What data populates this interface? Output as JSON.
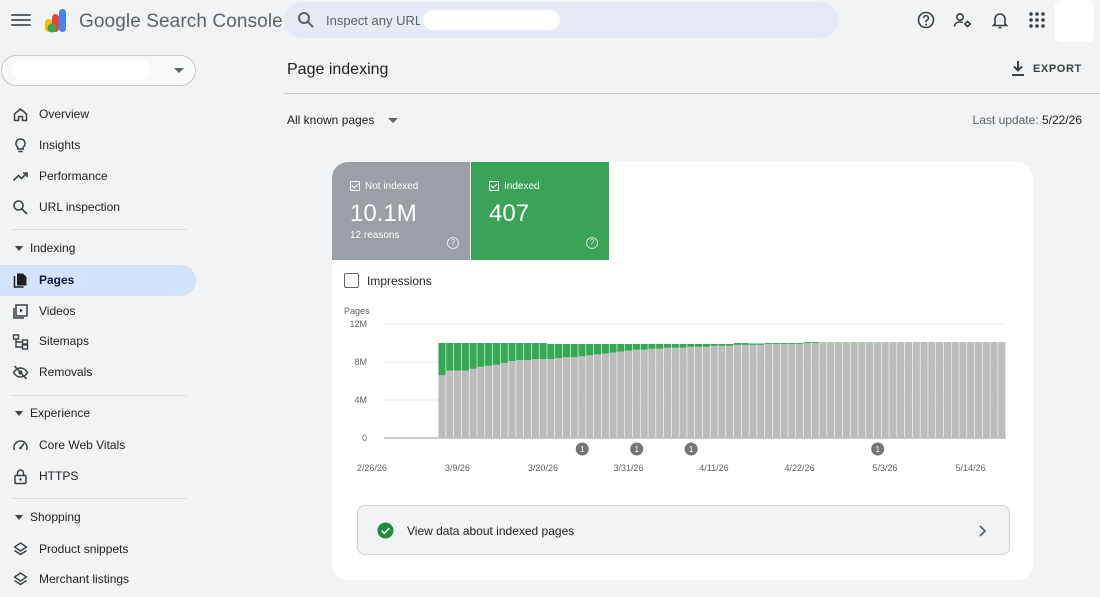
{
  "header": {
    "brand": "Google Search Console",
    "search_placeholder": "Inspect any URL",
    "icons": [
      "menu-icon",
      "search-icon",
      "help-icon",
      "manage-users-icon",
      "notifications-icon",
      "apps-grid-icon"
    ]
  },
  "sidebar": {
    "nav": [
      {
        "label": "Overview",
        "icon": "home-icon"
      },
      {
        "label": "Insights",
        "icon": "lightbulb-icon"
      },
      {
        "label": "Performance",
        "icon": "trending-up-icon"
      },
      {
        "label": "URL inspection",
        "icon": "search-icon"
      }
    ],
    "indexing": {
      "title": "Indexing",
      "items": [
        {
          "label": "Pages",
          "icon": "pages-icon",
          "active": true
        },
        {
          "label": "Videos",
          "icon": "video-icon"
        },
        {
          "label": "Sitemaps",
          "icon": "sitemap-icon"
        },
        {
          "label": "Removals",
          "icon": "visibility-off-icon"
        }
      ]
    },
    "experience": {
      "title": "Experience",
      "items": [
        {
          "label": "Core Web Vitals",
          "icon": "speed-icon"
        },
        {
          "label": "HTTPS",
          "icon": "lock-icon"
        }
      ]
    },
    "shopping": {
      "title": "Shopping",
      "items": [
        {
          "label": "Product snippets",
          "icon": "layers-icon"
        },
        {
          "label": "Merchant listings",
          "icon": "layers-icon"
        }
      ]
    }
  },
  "main": {
    "title": "Page indexing",
    "export_label": "EXPORT",
    "filter_label": "All known pages",
    "last_update_label": "Last update:",
    "last_update_value": "5/22/26"
  },
  "tiles": {
    "not_indexed": {
      "label": "Not indexed",
      "value": "10.1M",
      "sub": "12 reasons"
    },
    "indexed": {
      "label": "Indexed",
      "value": "407"
    }
  },
  "impressions_label": "Impressions",
  "view_data_label": "View data about indexed pages",
  "colors": {
    "not_indexed": "#9aa0a6",
    "indexed": "#3aa357",
    "bars_grey": "#bdbdbd",
    "bars_green": "#34a853"
  },
  "chart_data": {
    "type": "bar",
    "stacked": true,
    "ylabel": "Pages",
    "y_ticks": [
      "12M",
      "8M",
      "4M",
      "0"
    ],
    "ylim": [
      0,
      12
    ],
    "x_tick_labels": [
      "2/26/26",
      "3/9/26",
      "3/20/26",
      "3/31/26",
      "4/11/26",
      "4/22/26",
      "5/3/26",
      "5/14/26"
    ],
    "x_start_date": "2026-02-26",
    "days": 80,
    "series": [
      {
        "name": "Not indexed",
        "start_index": 7,
        "values_millions": [
          6.6,
          7.1,
          7.1,
          7.1,
          7.3,
          7.5,
          7.6,
          7.7,
          7.9,
          8.1,
          8.2,
          8.2,
          8.3,
          8.3,
          8.3,
          8.4,
          8.5,
          8.5,
          8.6,
          8.7,
          8.8,
          8.9,
          9.0,
          9.1,
          9.2,
          9.3,
          9.3,
          9.4,
          9.4,
          9.5,
          9.5,
          9.5,
          9.6,
          9.6,
          9.6,
          9.7,
          9.7,
          9.7,
          9.8,
          9.8,
          9.8,
          9.8,
          9.9,
          9.9,
          9.9,
          9.9,
          9.9,
          10.0,
          10.0,
          10.0,
          10.0,
          10.0,
          10.0,
          10.0,
          10.0,
          10.0,
          10.1,
          10.1,
          10.1,
          10.1,
          10.1,
          10.1,
          10.1,
          10.1,
          10.1,
          10.1,
          10.1,
          10.1,
          10.1,
          10.1,
          10.1,
          10.1,
          10.1
        ]
      },
      {
        "name": "Indexed",
        "start_index": 7,
        "values_millions": [
          3.4,
          2.9,
          2.9,
          2.9,
          2.7,
          2.5,
          2.4,
          2.3,
          2.1,
          1.9,
          1.8,
          1.8,
          1.7,
          1.7,
          1.6,
          1.5,
          1.4,
          1.4,
          1.3,
          1.2,
          1.1,
          1.0,
          0.9,
          0.8,
          0.7,
          0.6,
          0.6,
          0.5,
          0.5,
          0.4,
          0.4,
          0.4,
          0.3,
          0.3,
          0.3,
          0.2,
          0.2,
          0.2,
          0.2,
          0.2,
          0.15,
          0.15,
          0.1,
          0.1,
          0.1,
          0.1,
          0.1,
          0.1,
          0.1,
          0.05,
          0.05,
          0.05,
          0.05,
          0.05,
          0.05,
          0.05,
          0.0,
          0.0,
          0.0,
          0.0,
          0.0,
          0.0,
          0.0,
          0.0,
          0.0,
          0.0,
          0.0,
          0.0,
          0.0,
          0.0,
          0.0,
          0.0,
          0.0
        ]
      }
    ],
    "annotations": [
      {
        "day_index": 25,
        "label": "1"
      },
      {
        "day_index": 32,
        "label": "1"
      },
      {
        "day_index": 39,
        "label": "1"
      },
      {
        "day_index": 63,
        "label": "1"
      }
    ]
  }
}
